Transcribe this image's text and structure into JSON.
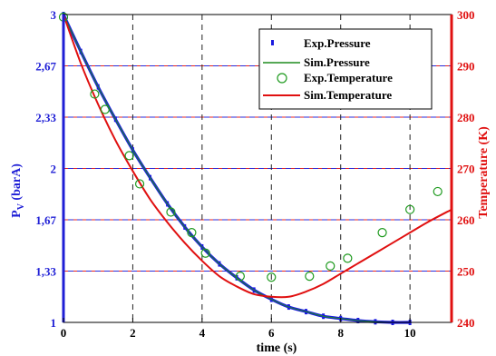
{
  "chart_data": {
    "type": "line",
    "title": "",
    "xlabel": "time (s)",
    "ylabel_left": "P",
    "ylabel_left_sub": "V",
    "ylabel_left_unit": " (barA)",
    "ylabel_right": "Temperature (K)",
    "xlim": [
      0,
      11.2
    ],
    "ylim_left": [
      1,
      3
    ],
    "ylim_right": [
      240,
      300
    ],
    "x_ticks": [
      0,
      2,
      4,
      6,
      8,
      10
    ],
    "x_tick_labels": [
      "0",
      "2",
      "4",
      "6",
      "8",
      "10"
    ],
    "y_left_ticks": [
      1,
      1.333,
      1.667,
      2,
      2.333,
      2.667,
      3
    ],
    "y_left_tick_labels": [
      "1",
      "1,33",
      "1,67",
      "2",
      "2,33",
      "2,67",
      "3"
    ],
    "y_right_ticks": [
      240,
      250,
      260,
      270,
      280,
      290,
      300
    ],
    "y_right_tick_labels": [
      "240",
      "250",
      "260",
      "270",
      "280",
      "290",
      "300"
    ],
    "grid": true,
    "legend_position": "top-right",
    "colors": {
      "exp_pressure": "#1a1adf",
      "sim_pressure": "#1e8c1e",
      "exp_temperature": "#1e9a1e",
      "sim_temperature": "#e01010",
      "left_axis": "#1f1fd6",
      "right_axis": "#e01010",
      "grid_v": "#222222",
      "grid_red": "#e02020",
      "grid_blue": "#2a2ad6"
    },
    "series": [
      {
        "name": "Exp.Pressure",
        "axis": "left",
        "style": "dots",
        "x": [
          0,
          0.5,
          1,
          1.5,
          2,
          2.5,
          3,
          3.5,
          4,
          4.5,
          5,
          5.5,
          6,
          6.5,
          7,
          7.5,
          8,
          8.5,
          9,
          9.5,
          10
        ],
        "y": [
          3.0,
          2.76,
          2.53,
          2.32,
          2.12,
          1.94,
          1.77,
          1.62,
          1.49,
          1.38,
          1.29,
          1.21,
          1.15,
          1.1,
          1.07,
          1.04,
          1.025,
          1.012,
          1.004,
          1.0,
          1.0
        ]
      },
      {
        "name": "Sim.Pressure",
        "axis": "left",
        "style": "line",
        "x": [
          0,
          0.5,
          1,
          1.5,
          2,
          2.5,
          3,
          3.5,
          4,
          4.5,
          5,
          5.5,
          6,
          6.5,
          7,
          7.5,
          8,
          8.5,
          9,
          9.5,
          10
        ],
        "y": [
          3.0,
          2.76,
          2.53,
          2.32,
          2.12,
          1.94,
          1.77,
          1.62,
          1.49,
          1.38,
          1.29,
          1.21,
          1.15,
          1.1,
          1.07,
          1.04,
          1.025,
          1.012,
          1.004,
          1.0,
          1.0
        ]
      },
      {
        "name": "Exp.Temperature",
        "axis": "right",
        "style": "circles",
        "x": [
          0,
          0.9,
          1.2,
          1.9,
          2.2,
          3.1,
          3.7,
          4.1,
          5.1,
          6.0,
          7.1,
          7.7,
          8.2,
          9.2,
          10.0,
          10.8
        ],
        "y": [
          299.5,
          284.5,
          281.5,
          272.5,
          267.0,
          261.5,
          257.5,
          253.5,
          249.0,
          248.8,
          249.0,
          251.0,
          252.5,
          257.5,
          262.0,
          265.5
        ]
      },
      {
        "name": "Sim.Temperature",
        "axis": "right",
        "style": "line",
        "x": [
          0,
          0.5,
          1,
          1.5,
          2,
          2.5,
          3,
          3.5,
          4,
          4.5,
          5,
          5.5,
          6,
          6.5,
          7,
          7.5,
          8,
          8.5,
          9,
          9.5,
          10,
          10.5,
          11.2
        ],
        "y": [
          300,
          290.5,
          282.5,
          275.5,
          269.5,
          264.0,
          259.5,
          255.5,
          252.0,
          249.0,
          247.0,
          245.5,
          245.0,
          245.0,
          246.0,
          247.5,
          249.5,
          251.5,
          253.5,
          255.5,
          257.5,
          259.5,
          262.0
        ]
      }
    ]
  }
}
